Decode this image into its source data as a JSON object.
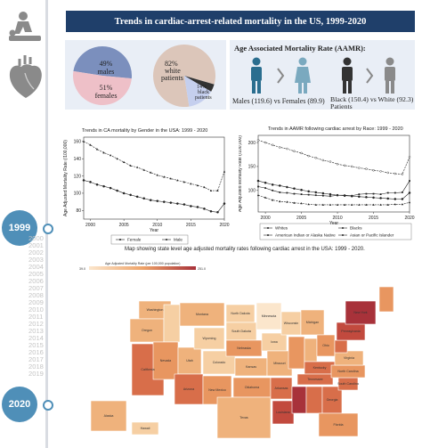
{
  "timeline": {
    "start_year": "1999",
    "end_year": "2020",
    "years": [
      "2000",
      "2001",
      "2002",
      "2003",
      "2004",
      "2005",
      "2006",
      "2007",
      "2008",
      "2009",
      "2010",
      "2011",
      "2012",
      "2013",
      "2014",
      "2015",
      "2016",
      "2017",
      "2018",
      "2019"
    ]
  },
  "icons": [
    "cpr-icon",
    "heart-icon"
  ],
  "title": "Trends in cardiac-arrest-related mortality in the US, 1999-2020",
  "pie_gender": {
    "male_pct": "49%",
    "male_label": "males",
    "female_pct": "51%",
    "female_label": "females",
    "colors": {
      "male": "#7b8fbd",
      "female": "#eec0c8"
    }
  },
  "pie_race": {
    "white_pct": "82%",
    "white_label1": "white",
    "white_label2": "patients",
    "black_pct": "14%",
    "black_label1": "black",
    "black_label2": "patients",
    "colors": {
      "white": "#dcc6ba",
      "black": "#c5cfee",
      "other": "#333333"
    }
  },
  "aamr": {
    "heading": "Age Associated Mortality Rate (AAMR):",
    "gender_text": "Males (119.6) vs Females (89.9)",
    "race_text_line1": "Black (150.4) vs White (92.3)",
    "race_text_line2": "Patients",
    "colors": {
      "male": "#2b6e8f",
      "female": "#7aa9bf",
      "black": "#333333",
      "white": "#8a8a8a"
    }
  },
  "chart_data": [
    {
      "type": "line",
      "title": "Trends in CA mortality by Gender in the USA: 1999 - 2020",
      "xlabel": "Year",
      "ylabel": "Age Adjusted Mortality Rate (/100,000)",
      "x": [
        1999,
        2000,
        2001,
        2002,
        2003,
        2004,
        2005,
        2006,
        2007,
        2008,
        2009,
        2010,
        2011,
        2012,
        2013,
        2014,
        2015,
        2016,
        2017,
        2018,
        2019,
        2020
      ],
      "xticks": [
        2000,
        2005,
        2010,
        2015,
        2020
      ],
      "yticks": [
        80,
        100,
        120,
        140,
        160
      ],
      "ylim": [
        70,
        165
      ],
      "series": [
        {
          "name": "Female",
          "values": [
            115,
            113,
            110,
            108,
            106,
            103,
            100,
            98,
            96,
            94,
            92,
            91,
            90,
            89,
            88,
            87,
            85,
            84,
            82,
            79,
            78,
            88
          ]
        },
        {
          "name": "Male",
          "values": [
            160,
            156,
            151,
            147,
            144,
            140,
            136,
            132,
            130,
            127,
            124,
            121,
            119,
            117,
            115,
            113,
            111,
            109,
            107,
            103,
            103,
            125
          ]
        }
      ],
      "legend": "bottom"
    },
    {
      "type": "line",
      "title": "Trends in AAMR following cardiac arrest by Race: 1999 - 2020",
      "xlabel": "Year",
      "ylabel": "Age Adjusted Mortality Rate (/100,000)",
      "x": [
        1999,
        2000,
        2001,
        2002,
        2003,
        2004,
        2005,
        2006,
        2007,
        2008,
        2009,
        2010,
        2011,
        2012,
        2013,
        2014,
        2015,
        2016,
        2017,
        2018,
        2019,
        2020
      ],
      "xticks": [
        2000,
        2005,
        2010,
        2015,
        2020
      ],
      "yticks": [
        100,
        150,
        200
      ],
      "ylim": [
        55,
        215
      ],
      "series": [
        {
          "name": "Whites",
          "values": [
            120,
            116,
            112,
            110,
            107,
            104,
            101,
            98,
            96,
            94,
            92,
            90,
            89,
            88,
            87,
            86,
            85,
            84,
            83,
            82,
            82,
            95
          ]
        },
        {
          "name": "Blacks",
          "values": [
            205,
            200,
            195,
            190,
            187,
            182,
            178,
            172,
            168,
            163,
            160,
            155,
            152,
            150,
            147,
            145,
            142,
            140,
            137,
            135,
            134,
            170
          ]
        },
        {
          "name": "American Indian or Alaska Native",
          "values": [
            108,
            105,
            100,
            96,
            95,
            93,
            92,
            91,
            90,
            89,
            88,
            90,
            90,
            89,
            92,
            93,
            93,
            92,
            95,
            95,
            96,
            120
          ]
        },
        {
          "name": "Asian or Pacific Islander",
          "values": [
            90,
            85,
            80,
            77,
            76,
            74,
            73,
            71,
            70,
            70,
            70,
            70,
            70,
            70,
            70,
            70,
            70,
            70,
            70,
            71,
            71,
            75
          ]
        }
      ],
      "legend": "bottom"
    }
  ],
  "map": {
    "caption": "Map showing state level age adjusted mortality rates following cardiac arrest in the USA: 1999 - 2020.",
    "legend_title": "Age Adjusted Mortality Rate (per 100,000 population)",
    "legend_min": "39.0",
    "legend_max": "251.0",
    "colors": {
      "low": "#fbe6cc",
      "mid": "#eea46a",
      "high": "#a8323a"
    },
    "states": [
      "Washington",
      "Oregon",
      "California",
      "Idaho",
      "Nevada",
      "Utah",
      "Arizona",
      "Montana",
      "Wyoming",
      "Colorado",
      "New Mexico",
      "North Dakota",
      "South Dakota",
      "Nebraska",
      "Kansas",
      "Oklahoma",
      "Texas",
      "Minnesota",
      "Iowa",
      "Missouri",
      "Arkansas",
      "Louisiana",
      "Wisconsin",
      "Illinois",
      "Michigan",
      "Indiana",
      "Ohio",
      "Kentucky",
      "Tennessee",
      "Mississippi",
      "Alabama",
      "Georgia",
      "Florida",
      "South Carolina",
      "North Carolina",
      "Virginia",
      "West Virginia",
      "Pennsylvania",
      "New York",
      "Maine",
      "Alaska",
      "Hawaii"
    ]
  }
}
